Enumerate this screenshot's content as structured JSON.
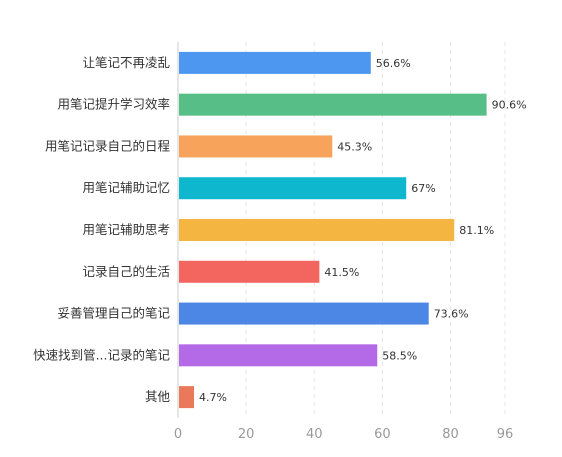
{
  "chart_data": {
    "type": "bar",
    "orientation": "horizontal",
    "categories": [
      "让笔记不再凌乱",
      "用笔记提升学习效率",
      "用笔记记录自己的日程",
      "用笔记辅助记忆",
      "用笔记辅助思考",
      "记录自己的生活",
      "妥善管理自己的笔记",
      "快速找到管...记录的笔记",
      "其他"
    ],
    "values": [
      56.6,
      90.6,
      45.3,
      67,
      81.1,
      41.5,
      73.6,
      58.5,
      4.7
    ],
    "value_labels": [
      "56.6%",
      "90.6%",
      "45.3%",
      "67%",
      "81.1%",
      "41.5%",
      "73.6%",
      "58.5%",
      "4.7%"
    ],
    "colors": [
      "#4E97F0",
      "#58BE88",
      "#F7A35C",
      "#0FB7CE",
      "#F5B641",
      "#F2665F",
      "#4D87E5",
      "#B46AE6",
      "#E9795A"
    ],
    "xlim": [
      0,
      96
    ],
    "xticks": [
      0,
      20,
      40,
      60,
      80,
      96
    ],
    "xtick_labels": [
      "0",
      "20",
      "40",
      "60",
      "80",
      "96"
    ],
    "grid": true
  }
}
